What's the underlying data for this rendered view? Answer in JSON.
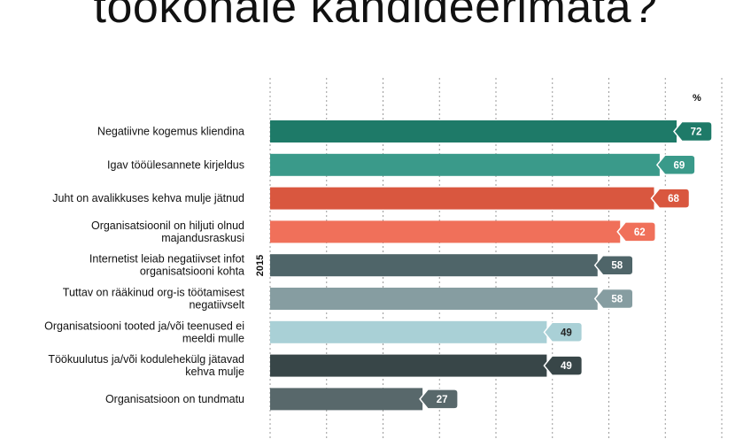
{
  "chart_data": {
    "type": "bar",
    "orientation": "horizontal",
    "title": "töökohale kandideerimata?",
    "unit": "%",
    "year_label": "2015",
    "xlim": [
      0,
      80
    ],
    "grid": true,
    "categories": [
      "Negatiivne kogemus kliendina",
      "Igav tööülesannete kirjeldus",
      "Juht on avalikkuses kehva mulje jätnud",
      "Organisatsioonil on hiljuti olnud majandusraskusi",
      "Internetist leiab negatiivset infot organisatsiooni kohta",
      "Tuttav on rääkinud org-is töötamisest negatiivselt",
      "Organisatsiooni tooted ja/või teenused ei meeldi mulle",
      "Töökuulutus ja/või kodulehekülg jätavad kehva mulje",
      "Organisatsioon on tundmatu"
    ],
    "category_lines": [
      [
        "Negatiivne kogemus kliendina"
      ],
      [
        "Igav tööülesannete kirjeldus"
      ],
      [
        "Juht on avalikkuses kehva mulje jätnud"
      ],
      [
        "Organisatsioonil on hiljuti olnud",
        "majandusraskusi"
      ],
      [
        "Internetist leiab negatiivset infot",
        "organisatsiooni kohta"
      ],
      [
        "Tuttav on rääkinud org-is töötamisest",
        "negatiivselt"
      ],
      [
        "Organisatsiooni tooted ja/või teenused ei",
        "meeldi mulle"
      ],
      [
        "Töökuulutus ja/või kodulehekülg jätavad",
        "kehva mulje"
      ],
      [
        "Organisatsioon on tundmatu"
      ]
    ],
    "values": [
      72,
      69,
      68,
      62,
      58,
      58,
      49,
      49,
      27
    ],
    "colors": [
      "#1e7a68",
      "#3a9a8a",
      "#d9573f",
      "#f0705a",
      "#4f6569",
      "#869da1",
      "#a9d0d6",
      "#384648",
      "#58686b"
    ],
    "label_text_colors": [
      "#ffffff",
      "#ffffff",
      "#ffffff",
      "#ffffff",
      "#ffffff",
      "#ffffff",
      "#222222",
      "#ffffff",
      "#ffffff"
    ]
  }
}
